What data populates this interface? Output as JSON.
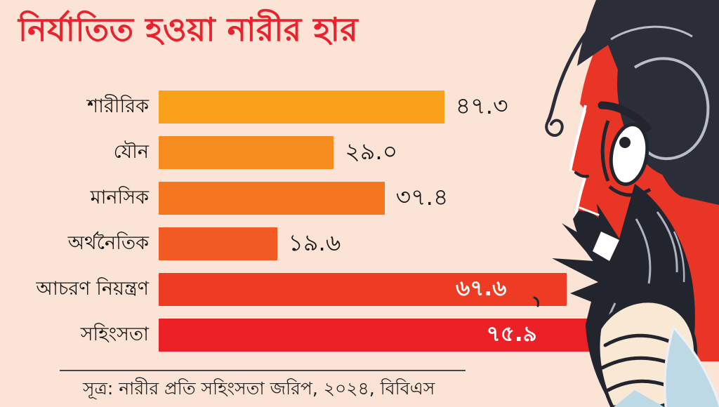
{
  "background": "#FBE4D6",
  "title": {
    "text": "নির্যাতিত হওয়া নারীর হার",
    "color": "#E9232D"
  },
  "chart_data": {
    "type": "bar",
    "orientation": "horizontal",
    "title": "নির্যাতিত হওয়া নারীর হার",
    "categories": [
      "শারীরিক",
      "যৌন",
      "মানসিক",
      "অর্থনৈতিক",
      "আচরণ নিয়ন্ত্রণ",
      "সহিংসতা"
    ],
    "values": [
      47.3,
      29.0,
      37.4,
      19.6,
      67.6,
      75.9
    ],
    "value_labels": [
      "৪৭.৩",
      "২৯.০",
      "৩৭.৪",
      "১৯.৬",
      "৬৭.৬",
      "৭৫.৯"
    ],
    "value_label_placement": [
      "outside",
      "outside",
      "outside",
      "outside",
      "inside",
      "inside"
    ],
    "bar_colors": [
      "#F9A11B",
      "#F78C1E",
      "#F4771F",
      "#F15A22",
      "#EE3C24",
      "#EB2127"
    ],
    "xlim": [
      0,
      80
    ],
    "grid": false,
    "legend": false,
    "label_color": "#141414",
    "outside_value_color": "#161616",
    "inside_value_color": "#FFFFFF"
  },
  "source": {
    "text": "সূত্র: নারীর প্রতি সহিংসতা জরিপ, ২০২৪, বিবিএস"
  },
  "illustration": {
    "name": "distressed-woman-hair-grabbed",
    "face_color": "#E93526",
    "hair_color": "#2B2D39",
    "hand_color": "#23252E",
    "skin_color": "#F8E8D4",
    "clothing_color": "#BCD9E5",
    "highlight_color": "#B9BDC9"
  }
}
